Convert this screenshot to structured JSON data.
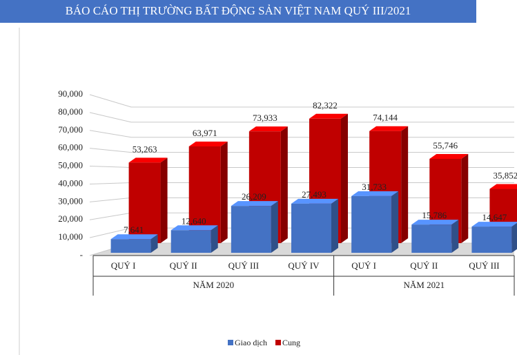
{
  "chart_data": {
    "type": "bar3d",
    "title": "BÁO CÁO THỊ TRƯỜNG BẤT ĐỘNG SẢN VIỆT NAM QUÝ III/2021",
    "groups": [
      {
        "name": "NĂM 2020",
        "categories": [
          "QUÝ I",
          "QUÝ II",
          "QUÝ III",
          "QUÝ IV"
        ]
      },
      {
        "name": "NĂM 2021",
        "categories": [
          "QUÝ I",
          "QUÝ II",
          "QUÝ III"
        ]
      }
    ],
    "series": [
      {
        "name": "Giao dịch",
        "color": "#4472c4",
        "values": [
          7641,
          12640,
          26209,
          27493,
          31733,
          15786,
          14647
        ],
        "value_labels": [
          "7,641",
          "12,640",
          "26,209",
          "27,493",
          "31,733",
          "15,786",
          "14,647"
        ]
      },
      {
        "name": "Cung",
        "color": "#c00000",
        "values": [
          53263,
          63971,
          73933,
          82322,
          74144,
          55746,
          35852
        ],
        "value_labels": [
          "53,263",
          "63,971",
          "73,933",
          "82,322",
          "74,144",
          "55,746",
          "35,852"
        ]
      }
    ],
    "ylim": [
      0,
      90000
    ],
    "yticks": [
      {
        "value": 0,
        "label": "-"
      },
      {
        "value": 10000,
        "label": "10,000"
      },
      {
        "value": 20000,
        "label": "20,000"
      },
      {
        "value": 30000,
        "label": "30,000"
      },
      {
        "value": 40000,
        "label": "40,000"
      },
      {
        "value": 50000,
        "label": "50,000"
      },
      {
        "value": 60000,
        "label": "60,000"
      },
      {
        "value": 70000,
        "label": "70,000"
      },
      {
        "value": 80000,
        "label": "80,000"
      },
      {
        "value": 90000,
        "label": "90,000"
      }
    ],
    "grid": true,
    "legend": "bottom"
  }
}
